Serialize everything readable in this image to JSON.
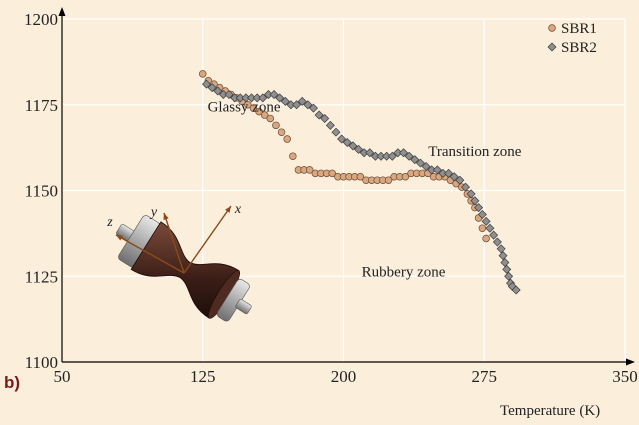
{
  "chart_data": {
    "type": "scatter",
    "xlabel": "Temperature (K)",
    "ylabel": "",
    "xlim": [
      50,
      350
    ],
    "ylim": [
      1100,
      1200
    ],
    "x_ticks": [
      50,
      125,
      200,
      275,
      350
    ],
    "y_ticks": [
      1100,
      1125,
      1150,
      1175,
      1200
    ],
    "grid": true,
    "legend_position": "top-right",
    "panel_label": "b)",
    "colors": {
      "SBR1": "#d9a77f",
      "SBR2": "#8f8f8f",
      "grid": "#ffffff",
      "axis": "#000000"
    },
    "annotations": [
      {
        "text": "Glassy zone",
        "x": 147,
        "y": 1173
      },
      {
        "text": "Transition zone",
        "x": 270,
        "y": 1160
      },
      {
        "text": "Rubbery zone",
        "x": 232,
        "y": 1125
      }
    ],
    "inset": {
      "name": "specimen-illustration",
      "axis_labels": [
        "z",
        "y",
        "x"
      ]
    },
    "series": [
      {
        "name": "SBR1",
        "marker": "circle",
        "points": [
          [
            125,
            1184
          ],
          [
            128,
            1182
          ],
          [
            131,
            1181
          ],
          [
            134,
            1180
          ],
          [
            137,
            1179
          ],
          [
            140,
            1178
          ],
          [
            143,
            1177
          ],
          [
            146,
            1176
          ],
          [
            149,
            1175
          ],
          [
            152,
            1174
          ],
          [
            155,
            1173
          ],
          [
            158,
            1172
          ],
          [
            161,
            1171
          ],
          [
            164,
            1169
          ],
          [
            167,
            1167
          ],
          [
            170,
            1165
          ],
          [
            173,
            1160
          ],
          [
            176,
            1156
          ],
          [
            179,
            1156
          ],
          [
            182,
            1156
          ],
          [
            185,
            1155
          ],
          [
            188,
            1155
          ],
          [
            191,
            1155
          ],
          [
            194,
            1155
          ],
          [
            197,
            1154
          ],
          [
            200,
            1154
          ],
          [
            203,
            1154
          ],
          [
            206,
            1154
          ],
          [
            209,
            1154
          ],
          [
            212,
            1153
          ],
          [
            215,
            1153
          ],
          [
            218,
            1153
          ],
          [
            221,
            1153
          ],
          [
            224,
            1153
          ],
          [
            227,
            1154
          ],
          [
            230,
            1154
          ],
          [
            233,
            1154
          ],
          [
            236,
            1155
          ],
          [
            239,
            1155
          ],
          [
            242,
            1155
          ],
          [
            245,
            1155
          ],
          [
            248,
            1154
          ],
          [
            251,
            1154
          ],
          [
            254,
            1154
          ],
          [
            257,
            1153
          ],
          [
            260,
            1152
          ],
          [
            263,
            1151
          ],
          [
            266,
            1149
          ],
          [
            268,
            1147
          ],
          [
            270,
            1145
          ],
          [
            272,
            1142
          ],
          [
            274,
            1139
          ],
          [
            276,
            1136
          ]
        ]
      },
      {
        "name": "SBR2",
        "marker": "diamond",
        "points": [
          [
            127,
            1181
          ],
          [
            130,
            1180
          ],
          [
            133,
            1179
          ],
          [
            136,
            1178
          ],
          [
            139,
            1178
          ],
          [
            142,
            1177
          ],
          [
            145,
            1177
          ],
          [
            148,
            1177
          ],
          [
            151,
            1177
          ],
          [
            154,
            1177
          ],
          [
            157,
            1177
          ],
          [
            160,
            1178
          ],
          [
            163,
            1178
          ],
          [
            166,
            1177
          ],
          [
            169,
            1176
          ],
          [
            172,
            1175
          ],
          [
            175,
            1175
          ],
          [
            178,
            1176
          ],
          [
            181,
            1175
          ],
          [
            184,
            1174
          ],
          [
            187,
            1172
          ],
          [
            190,
            1171
          ],
          [
            193,
            1169
          ],
          [
            196,
            1167
          ],
          [
            199,
            1165
          ],
          [
            202,
            1164
          ],
          [
            205,
            1163
          ],
          [
            208,
            1162
          ],
          [
            211,
            1161
          ],
          [
            214,
            1161
          ],
          [
            217,
            1160
          ],
          [
            220,
            1160
          ],
          [
            223,
            1160
          ],
          [
            226,
            1160
          ],
          [
            229,
            1161
          ],
          [
            232,
            1161
          ],
          [
            235,
            1160
          ],
          [
            238,
            1159
          ],
          [
            241,
            1158
          ],
          [
            244,
            1157
          ],
          [
            247,
            1156
          ],
          [
            250,
            1156
          ],
          [
            253,
            1155
          ],
          [
            256,
            1155
          ],
          [
            259,
            1154
          ],
          [
            262,
            1153
          ],
          [
            265,
            1151
          ],
          [
            268,
            1149
          ],
          [
            270,
            1147
          ],
          [
            272,
            1145
          ],
          [
            274,
            1143
          ],
          [
            276,
            1141
          ],
          [
            278,
            1139
          ],
          [
            280,
            1137
          ],
          [
            282,
            1135
          ],
          [
            284,
            1133
          ],
          [
            285,
            1131
          ],
          [
            286,
            1129
          ],
          [
            287,
            1127
          ],
          [
            288,
            1125
          ],
          [
            289,
            1123
          ],
          [
            290,
            1122
          ],
          [
            292,
            1121
          ]
        ]
      }
    ]
  }
}
